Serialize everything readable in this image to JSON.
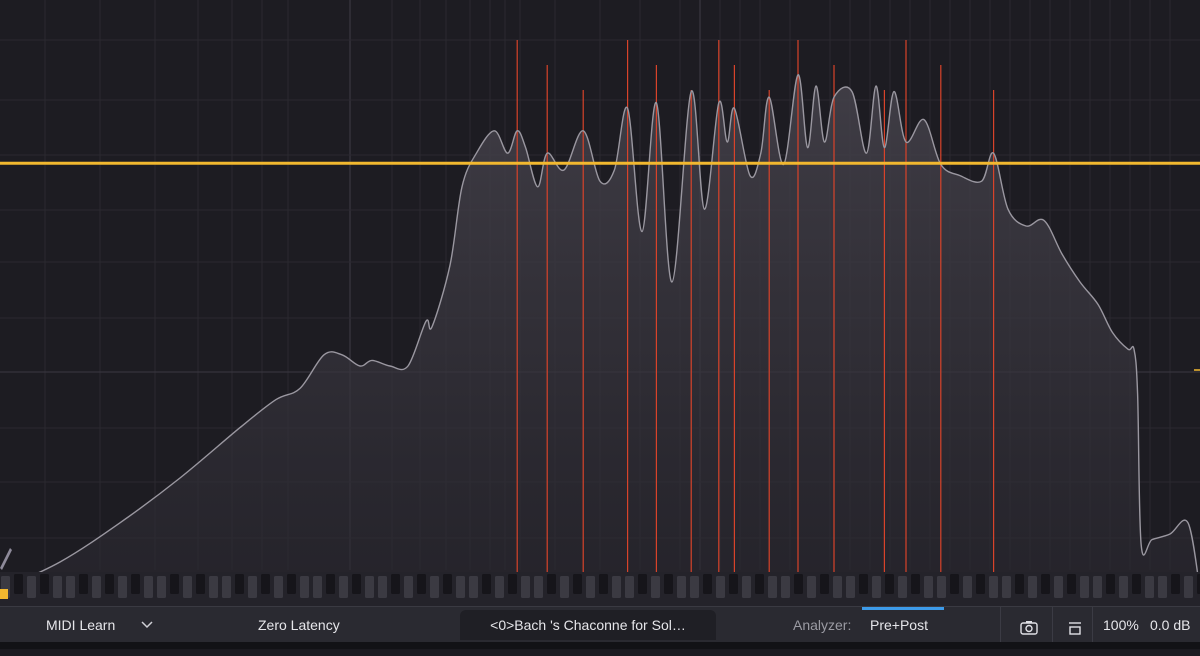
{
  "bottom_bar": {
    "midi_learn_label": "MIDI Learn",
    "zero_latency_label": "Zero Latency",
    "preset_name": "<0>Bach 's Chaconne for Sol…",
    "analyzer_label": "Analyzer:",
    "analyzer_value": "Pre+Post",
    "zoom_value": "100%",
    "output_gain_value": "0.0 dB",
    "icons": [
      "chevron-down-icon",
      "camera-icon",
      "collapse-icon"
    ]
  },
  "colors": {
    "background": "#1d1c22",
    "spectrum_line": "#9a97a0",
    "spectrum_fill": "#3a3840",
    "threshold_line": "#f2b82f",
    "peak_marker": "#d8432a",
    "analyzer_underline": "#3d9be9"
  },
  "chart_data": {
    "type": "area",
    "threshold_level": 0.762,
    "peak_markers": [
      0.431,
      0.456,
      0.486,
      0.523,
      0.547,
      0.576,
      0.599,
      0.612,
      0.641,
      0.665,
      0.695,
      0.737,
      0.755,
      0.784,
      0.828
    ],
    "spectrum": {
      "x": [
        0.0,
        0.05,
        0.1,
        0.15,
        0.2,
        0.23,
        0.25,
        0.27,
        0.285,
        0.3,
        0.31,
        0.325,
        0.34,
        0.355,
        0.36,
        0.375,
        0.385,
        0.397,
        0.412,
        0.423,
        0.431,
        0.438,
        0.448,
        0.456,
        0.47,
        0.486,
        0.5,
        0.512,
        0.523,
        0.535,
        0.547,
        0.56,
        0.576,
        0.587,
        0.599,
        0.606,
        0.612,
        0.625,
        0.634,
        0.641,
        0.653,
        0.665,
        0.673,
        0.68,
        0.687,
        0.695,
        0.71,
        0.722,
        0.73,
        0.737,
        0.745,
        0.755,
        0.77,
        0.784,
        0.8,
        0.818,
        0.828,
        0.84,
        0.855,
        0.87,
        0.885,
        0.9,
        0.915,
        0.927,
        0.94,
        0.945,
        0.948,
        0.951,
        0.96,
        0.975,
        0.99,
        1.0
      ],
      "y": [
        0.0,
        0.05,
        0.12,
        0.2,
        0.29,
        0.34,
        0.36,
        0.42,
        0.42,
        0.4,
        0.41,
        0.4,
        0.4,
        0.48,
        0.47,
        0.58,
        0.72,
        0.78,
        0.82,
        0.78,
        0.82,
        0.79,
        0.72,
        0.78,
        0.75,
        0.82,
        0.73,
        0.75,
        0.86,
        0.64,
        0.87,
        0.55,
        0.89,
        0.68,
        0.87,
        0.8,
        0.86,
        0.74,
        0.78,
        0.88,
        0.76,
        0.92,
        0.79,
        0.9,
        0.8,
        0.88,
        0.89,
        0.78,
        0.9,
        0.79,
        0.89,
        0.8,
        0.84,
        0.76,
        0.74,
        0.73,
        0.78,
        0.68,
        0.65,
        0.66,
        0.6,
        0.55,
        0.51,
        0.46,
        0.43,
        0.43,
        0.35,
        0.08,
        0.09,
        0.1,
        0.12,
        0.0
      ]
    },
    "grid": true,
    "piano_keyboard": true
  }
}
